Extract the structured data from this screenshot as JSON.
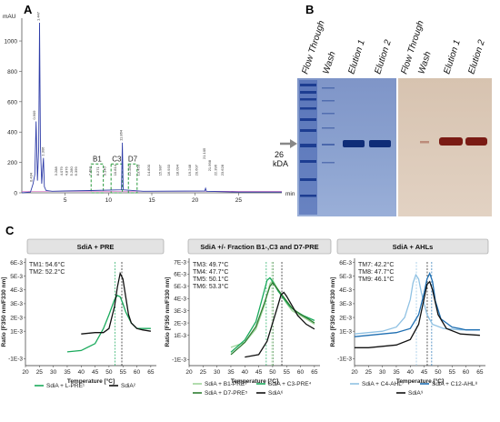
{
  "panels": {
    "a": {
      "letter": "A"
    },
    "b": {
      "letter": "B"
    },
    "c": {
      "letter": "C"
    }
  },
  "chromatogram": {
    "y_unit": "mAU",
    "x_unit": "min",
    "xlim": [
      0,
      30
    ],
    "ylim": [
      0,
      1150
    ],
    "x_ticks": [
      5,
      10,
      15,
      20,
      25
    ],
    "y_ticks": [
      0,
      200,
      400,
      600,
      800,
      1000
    ],
    "peak_labels": [
      {
        "x": 1.2,
        "label": "0.434",
        "h": 60
      },
      {
        "x": 1.6,
        "label": "0.909",
        "h": 470
      },
      {
        "x": 2.05,
        "label": "1.447",
        "h": 1120
      },
      {
        "x": 2.55,
        "label": "1.306",
        "h": 230
      },
      {
        "x": 4.1,
        "label": "3.288",
        "h": 100
      },
      {
        "x": 4.7,
        "label": "4.079",
        "h": 100
      },
      {
        "x": 5.3,
        "label": "4.876",
        "h": 100
      },
      {
        "x": 5.9,
        "label": "5.280",
        "h": 100
      },
      {
        "x": 6.4,
        "label": "6.399",
        "h": 100
      },
      {
        "x": 8.0,
        "label": "7.493",
        "h": 100
      },
      {
        "x": 8.9,
        "label": "8.271",
        "h": 100
      },
      {
        "x": 9.7,
        "label": "9.140",
        "h": 100
      },
      {
        "x": 10.9,
        "label": "10.814",
        "h": 100
      },
      {
        "x": 11.6,
        "label": "11.864",
        "h": 330
      },
      {
        "x": 12.6,
        "label": "12.281",
        "h": 100
      },
      {
        "x": 13.6,
        "label": "13.453",
        "h": 100
      },
      {
        "x": 14.8,
        "label": "14.800",
        "h": 100
      },
      {
        "x": 16.1,
        "label": "15.987",
        "h": 100
      },
      {
        "x": 17.1,
        "label": "16.933",
        "h": 100
      },
      {
        "x": 18.1,
        "label": "18.094",
        "h": 100
      },
      {
        "x": 19.5,
        "label": "19.248",
        "h": 100
      },
      {
        "x": 20.3,
        "label": "20.607",
        "h": 100
      },
      {
        "x": 21.2,
        "label": "21.105",
        "h": 210
      },
      {
        "x": 21.8,
        "label": "21.998",
        "h": 130
      },
      {
        "x": 22.5,
        "label": "22.396",
        "h": 100
      },
      {
        "x": 23.3,
        "label": "23.628",
        "h": 100
      }
    ],
    "fractions": [
      {
        "name": "B1",
        "x_start": 8.0,
        "x_end": 9.4
      },
      {
        "name": "C3",
        "x_start": 10.3,
        "x_end": 11.6
      },
      {
        "name": "D7",
        "x_start": 12.3,
        "x_end": 13.3
      }
    ]
  },
  "gel": {
    "lanes_left": [
      "Flow Through",
      "Wash",
      "Elution 1",
      "Elution 2"
    ],
    "lanes_right": [
      "Flow Through",
      "Wash",
      "Elution 1",
      "Elution 2"
    ],
    "marker_label": "26\nkDA",
    "marker_line1": "26",
    "marker_line2": "kDA"
  },
  "melt_panels": [
    {
      "header": "SdiA + PRE",
      "ylabel": "Ratio [F350 nm/F330 nm]",
      "xlabel": "Temperature [°C]",
      "y_ticks": [
        "-1E-3",
        "1E-3",
        "2E-3",
        "3E-3",
        "4E-3",
        "5E-3",
        "6E-3"
      ],
      "x_ticks": [
        "20",
        "25",
        "30",
        "35",
        "40",
        "45",
        "50",
        "55",
        "60",
        "65"
      ],
      "tm_lines": [
        "TM1: 54.6°C",
        "TM2: 52.2°C"
      ],
      "legend": [
        "SdiA + L-PRE¹",
        "SdiA²"
      ]
    },
    {
      "header": "SdiA +/- Fraction B1-,C3 and D7-PRE",
      "ylabel": "Ratio [F350 nm/F330 nm]",
      "xlabel": "Temperature [°C]",
      "y_ticks": [
        "-1E-3",
        "1E-3",
        "2E-3",
        "3E-3",
        "4E-3",
        "5E-3",
        "6E-3",
        "7E-3"
      ],
      "x_ticks": [
        "20",
        "25",
        "30",
        "35",
        "40",
        "45",
        "50",
        "55",
        "60",
        "65"
      ],
      "tm_lines": [
        "TM3: 49.7°C",
        "TM4: 47.7°C",
        "TM5: 50.1°C",
        "TM6: 53.3°C"
      ],
      "legend": [
        "SdiA + B1-PRE³",
        "SdiA + C3-PRE⁴",
        "SdiA + D7-PRE⁵",
        "SdiA⁶"
      ]
    },
    {
      "header": "SdiA + AHLs",
      "ylabel": "Ratio [F350 nm/F330 nm]",
      "xlabel": "Temperature [°C]",
      "y_ticks": [
        "-1E-3",
        "1E-3",
        "2E-3",
        "3E-3",
        "4E-3",
        "5E-3",
        "6E-3"
      ],
      "x_ticks": [
        "20",
        "25",
        "30",
        "35",
        "40",
        "45",
        "50",
        "55",
        "60",
        "65"
      ],
      "tm_lines": [
        "TM7: 42.2°C",
        "TM8: 47.7°C",
        "TM9: 46.1°C"
      ],
      "legend": [
        "SdiA + C4-AHL⁷",
        "SdiA + C12-AHL⁸",
        "SdiA⁹"
      ]
    }
  ],
  "chart_data": [
    {
      "type": "line",
      "title": "",
      "ylabel": "mAU",
      "xlabel": "min",
      "xlim": [
        0,
        30
      ],
      "ylim": [
        0,
        1150
      ],
      "series": [
        {
          "name": "",
          "x": [
            0,
            1.0,
            1.3,
            1.5,
            1.65,
            1.8,
            1.95,
            2.05,
            2.15,
            2.3,
            2.5,
            2.6,
            2.8,
            3.5,
            5,
            8,
            11.5,
            11.6,
            11.7,
            14,
            21.1,
            21.2,
            21.3,
            25,
            30
          ],
          "y": [
            0,
            5,
            60,
            120,
            470,
            80,
            300,
            1120,
            300,
            60,
            230,
            40,
            15,
            10,
            12,
            15,
            20,
            330,
            20,
            10,
            12,
            30,
            10,
            5,
            5
          ]
        }
      ]
    },
    {
      "type": "line",
      "title": "SdiA + PRE",
      "xlabel": "Temperature [°C]",
      "ylabel": "Ratio [F350 nm/F330 nm]",
      "xlim": [
        20,
        67
      ],
      "ylim": [
        -0.0015,
        0.0063
      ],
      "series": [
        {
          "name": "SdiA + L-PRE",
          "color": "#1aaa5c",
          "x": [
            35,
            40,
            45,
            48,
            50,
            52,
            53,
            54,
            55,
            56,
            58,
            60,
            62,
            65
          ],
          "y": [
            -0.0005,
            -0.0004,
            0.0001,
            0.0012,
            0.0022,
            0.0033,
            0.0036,
            0.0035,
            0.003,
            0.0024,
            0.0016,
            0.0012,
            0.0012,
            0.0012
          ]
        },
        {
          "name": "SdiA",
          "color": "#111111",
          "x": [
            40,
            45,
            48,
            50,
            52,
            53,
            54,
            55,
            56,
            57,
            58,
            60,
            62,
            65
          ],
          "y": [
            0.0008,
            0.0009,
            0.0009,
            0.0012,
            0.0028,
            0.0042,
            0.0052,
            0.0048,
            0.0035,
            0.0022,
            0.0016,
            0.0012,
            0.0011,
            0.001
          ]
        }
      ]
    },
    {
      "type": "line",
      "title": "SdiA +/- Fraction B1-,C3 and D7-PRE",
      "xlabel": "Temperature [°C]",
      "ylabel": "Ratio [F350 nm/F330 nm]",
      "xlim": [
        20,
        67
      ],
      "ylim": [
        -0.0015,
        0.0073
      ],
      "series": [
        {
          "name": "SdiA + B1-PRE",
          "color": "#9fd39a",
          "x": [
            35,
            40,
            44,
            47,
            49,
            50,
            51,
            53,
            55,
            57,
            60,
            63,
            65
          ],
          "y": [
            0.0,
            0.0004,
            0.0015,
            0.0034,
            0.0052,
            0.0055,
            0.0051,
            0.0043,
            0.0036,
            0.003,
            0.0026,
            0.0022,
            0.0019
          ]
        },
        {
          "name": "SdiA + C3-PRE",
          "color": "#1aaa5c",
          "x": [
            35,
            40,
            44,
            46,
            48,
            49,
            50,
            52,
            54,
            56,
            58,
            61,
            65
          ],
          "y": [
            -0.0004,
            0.0006,
            0.0021,
            0.0038,
            0.0055,
            0.0057,
            0.0054,
            0.0046,
            0.004,
            0.0034,
            0.003,
            0.0026,
            0.0022
          ]
        },
        {
          "name": "SdiA + D7-PRE",
          "color": "#2e7d32",
          "x": [
            35,
            40,
            44,
            47,
            49,
            50,
            51,
            53,
            55,
            57,
            60,
            63,
            65
          ],
          "y": [
            -0.0006,
            0.0004,
            0.0017,
            0.0036,
            0.005,
            0.0053,
            0.005,
            0.0044,
            0.0038,
            0.0032,
            0.0027,
            0.0023,
            0.002
          ]
        },
        {
          "name": "SdiA",
          "color": "#111111",
          "x": [
            40,
            45,
            48,
            50,
            52,
            53,
            54,
            55,
            57,
            59,
            62,
            65
          ],
          "y": [
            -0.0008,
            -0.0006,
            0.0005,
            0.002,
            0.0035,
            0.0043,
            0.0045,
            0.0042,
            0.0034,
            0.0026,
            0.0019,
            0.0015
          ]
        }
      ]
    },
    {
      "type": "line",
      "title": "SdiA + AHLs",
      "xlabel": "Temperature [°C]",
      "ylabel": "Ratio [F350 nm/F330 nm]",
      "xlim": [
        20,
        67
      ],
      "ylim": [
        -0.0015,
        0.0063
      ],
      "series": [
        {
          "name": "SdiA + C4-AHL",
          "color": "#8fc1e3",
          "x": [
            20,
            25,
            30,
            35,
            38,
            40,
            41,
            42,
            43,
            44,
            46,
            48,
            52,
            58,
            65
          ],
          "y": [
            0.0008,
            0.0009,
            0.001,
            0.0013,
            0.002,
            0.0033,
            0.0045,
            0.0051,
            0.0048,
            0.0038,
            0.0022,
            0.0015,
            0.0012,
            0.0011,
            0.0011
          ]
        },
        {
          "name": "SdiA + C12-AHL",
          "color": "#1f6fb2",
          "x": [
            20,
            25,
            30,
            35,
            40,
            43,
            45,
            46,
            47,
            48,
            49,
            51,
            55,
            60,
            65
          ],
          "y": [
            0.0006,
            0.0007,
            0.0008,
            0.0009,
            0.0012,
            0.0022,
            0.0038,
            0.0048,
            0.0052,
            0.0046,
            0.0032,
            0.0019,
            0.0013,
            0.0011,
            0.0011
          ]
        },
        {
          "name": "SdiA",
          "color": "#111111",
          "x": [
            20,
            25,
            30,
            35,
            40,
            43,
            45,
            46,
            47,
            48,
            50,
            53,
            58,
            65
          ],
          "y": [
            -0.0002,
            -0.0002,
            -0.0001,
            0.0,
            0.0004,
            0.0015,
            0.0034,
            0.0044,
            0.0046,
            0.004,
            0.0022,
            0.0012,
            0.0008,
            0.0007
          ]
        }
      ]
    }
  ]
}
